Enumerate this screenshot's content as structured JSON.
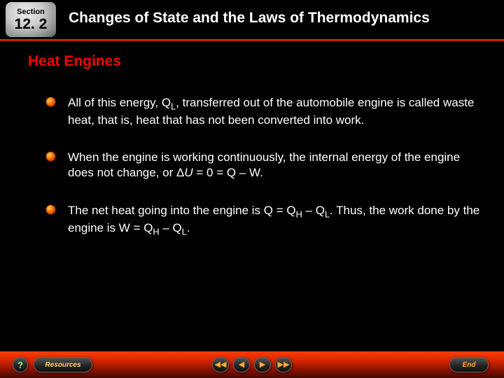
{
  "header": {
    "section_label": "Section",
    "section_number": "12. 2",
    "chapter_title": "Changes of State and the Laws of Thermodynamics"
  },
  "subtitle": "Heat Engines",
  "bullets": [
    {
      "text_html": "All of this energy, Q<sub class='sub'>L</sub>, transferred out of the automobile engine is called waste heat, that is, heat that has not been converted into work."
    },
    {
      "text_html": "When the engine is working continuously, the internal energy of the engine does not change, or Δ<i>U</i> = 0 = Q – W."
    },
    {
      "text_html": "The net heat going into the engine is Q = Q<sub class='sub'>H</sub> – Q<sub class='sub'>L</sub>. Thus, the work done by the engine is W = Q<sub class='sub'>H</sub> – Q<sub class='sub'>L</sub>."
    }
  ],
  "footer": {
    "help": "?",
    "resources": "Resources",
    "prev_chapter": "◀◀",
    "prev": "◀",
    "next": "▶",
    "next_chapter": "▶▶",
    "end": "End"
  },
  "colors": {
    "background": "#000000",
    "title_text": "#ffffff",
    "subtitle_text": "#ff0000",
    "body_text": "#ffffff",
    "divider": "#ff3300",
    "footer_gradient_top": "#ff3c00",
    "footer_gradient_bottom": "#440a00",
    "bullet_glow": "#ff7700",
    "button_bg": "#222222",
    "button_accent": "#ffaa33",
    "help_accent": "#7fff7f"
  },
  "typography": {
    "chapter_title_size": 21,
    "subtitle_size": 21,
    "body_size": 17,
    "font_family": "Arial"
  }
}
